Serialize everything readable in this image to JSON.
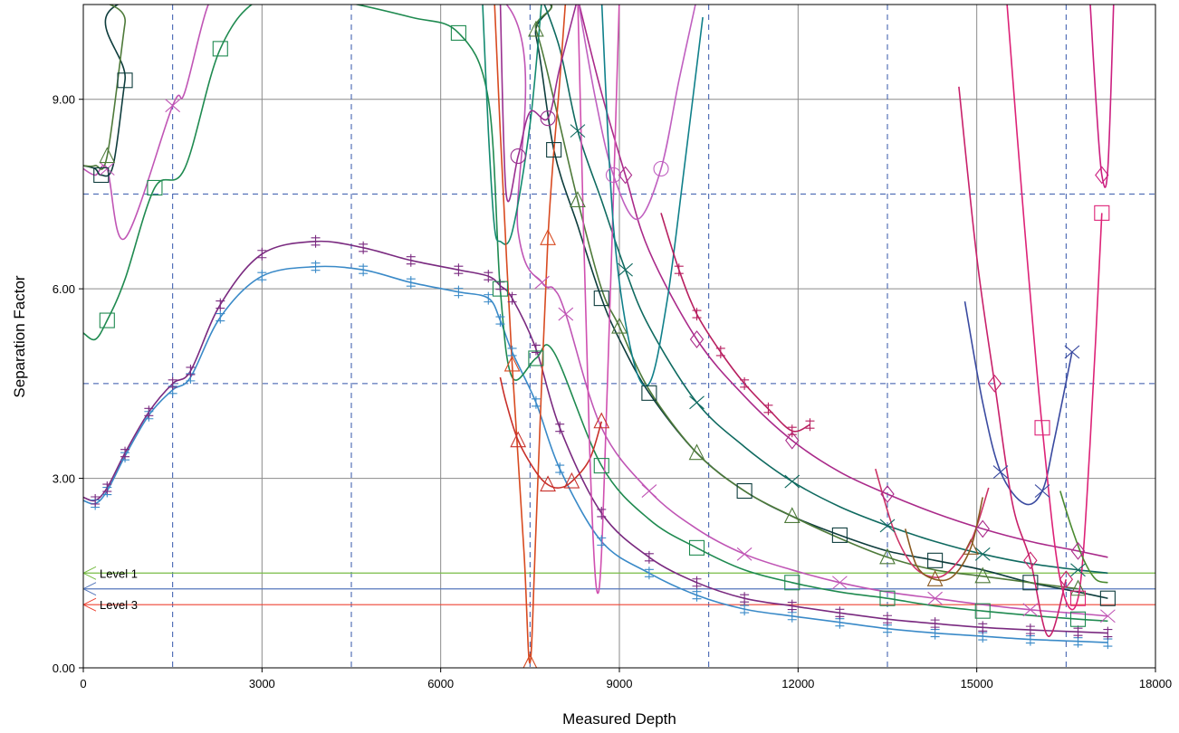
{
  "chart_data": {
    "type": "line",
    "title": "",
    "xlabel": "Measured Depth",
    "ylabel": "Separation  Factor",
    "xlim": [
      0,
      18000
    ],
    "ylim": [
      0,
      10.5
    ],
    "x_ticks": [
      {
        "value": 0,
        "label": "0"
      },
      {
        "value": 3000,
        "label": "3000"
      },
      {
        "value": 6000,
        "label": "6000"
      },
      {
        "value": 9000,
        "label": "9000"
      },
      {
        "value": 12000,
        "label": "12000"
      },
      {
        "value": 15000,
        "label": "15000"
      },
      {
        "value": 18000,
        "label": "18000"
      }
    ],
    "y_ticks": [
      {
        "value": 0,
        "label": "0.00"
      },
      {
        "value": 3,
        "label": "3.00"
      },
      {
        "value": 6,
        "label": "6.00"
      },
      {
        "value": 9,
        "label": "9.00"
      }
    ],
    "grid": true,
    "minor_dashed_x": [
      1500,
      4500,
      7500,
      10500,
      13500,
      16500
    ],
    "minor_dashed_y": [
      4.5,
      7.5
    ],
    "grid_color": "#8a8a8a",
    "dashed_grid_color": "#3355aa",
    "levels": [
      {
        "name": "Level 1",
        "value": 1.5,
        "color": "#77bb44"
      },
      {
        "name": "",
        "value": 1.25,
        "color": "#5577bb"
      },
      {
        "name": "Level 3",
        "value": 1.0,
        "color": "#ee4433"
      }
    ],
    "series": [
      {
        "color": "#3a8ac8",
        "marker": "plus",
        "x": [
          0,
          200,
          400,
          700,
          1100,
          1500,
          1800,
          2300,
          3000,
          3900,
          4700,
          5500,
          6300,
          6800,
          7000,
          7200,
          7600,
          8000,
          8700,
          9500,
          10300,
          11100,
          11900,
          12700,
          13500,
          14300,
          15100,
          15900,
          16700,
          17200
        ],
        "y": [
          2.65,
          2.6,
          2.8,
          3.35,
          4.0,
          4.4,
          4.6,
          5.55,
          6.2,
          6.35,
          6.3,
          6.1,
          5.95,
          5.85,
          5.5,
          5.0,
          4.2,
          3.15,
          2.0,
          1.5,
          1.15,
          0.93,
          0.82,
          0.72,
          0.62,
          0.55,
          0.5,
          0.45,
          0.42,
          0.4
        ]
      },
      {
        "color": "#7a2a80",
        "marker": "plus",
        "x": [
          0,
          200,
          400,
          700,
          1100,
          1500,
          1800,
          2300,
          3000,
          3900,
          4700,
          5500,
          6300,
          6800,
          7000,
          7200,
          7600,
          8000,
          8700,
          9500,
          10300,
          11100,
          11900,
          12700,
          13500,
          14300,
          15100,
          15900,
          16700,
          17200
        ],
        "y": [
          2.7,
          2.65,
          2.85,
          3.4,
          4.05,
          4.5,
          4.7,
          5.75,
          6.55,
          6.75,
          6.65,
          6.45,
          6.3,
          6.2,
          6.05,
          5.85,
          5.05,
          3.8,
          2.45,
          1.75,
          1.35,
          1.1,
          0.98,
          0.87,
          0.77,
          0.7,
          0.64,
          0.6,
          0.57,
          0.55
        ]
      },
      {
        "color": "#1f8a50",
        "marker": "square",
        "x": [
          0,
          200,
          400,
          700,
          1200,
          1700,
          2300,
          3000,
          4000,
          5500,
          6300,
          6800,
          7000,
          7200,
          7600,
          7900,
          8700,
          9500,
          10300,
          11100,
          11900,
          12700,
          13500,
          14300,
          15100,
          15900,
          16700,
          17200
        ],
        "y": [
          5.3,
          5.2,
          5.5,
          6.15,
          7.6,
          7.9,
          9.8,
          10.6,
          10.6,
          10.3,
          10.05,
          9.0,
          6.0,
          4.6,
          4.9,
          5.0,
          3.2,
          2.35,
          1.9,
          1.55,
          1.35,
          1.2,
          1.1,
          0.98,
          0.9,
          0.83,
          0.77,
          0.74
        ]
      },
      {
        "color": "#c055b5",
        "marker": "x",
        "x": [
          0,
          200,
          400,
          700,
          1500,
          1700,
          2100,
          2400,
          7000,
          7300,
          7700,
          7900,
          8100,
          8700,
          9500,
          10300,
          11100,
          11900,
          12700,
          13500,
          14300,
          15100,
          15900,
          16700,
          17200
        ],
        "y": [
          7.9,
          7.8,
          7.9,
          6.8,
          8.9,
          9.1,
          10.5,
          10.6,
          10.6,
          6.9,
          6.1,
          6.0,
          5.6,
          3.8,
          2.8,
          2.2,
          1.8,
          1.55,
          1.35,
          1.2,
          1.1,
          1.0,
          0.92,
          0.86,
          0.82
        ]
      },
      {
        "color": "#0e3d3d",
        "marker": "square",
        "x": [
          0,
          200,
          300,
          500,
          700,
          900,
          7300,
          7600,
          7900,
          8300,
          8700,
          9000,
          9500,
          10300,
          11100,
          11900,
          12700,
          13500,
          14300,
          15100,
          15900,
          16700,
          17200
        ],
        "y": [
          7.95,
          7.9,
          7.8,
          7.95,
          9.3,
          10.6,
          10.6,
          10.0,
          8.2,
          7.0,
          5.85,
          5.2,
          4.35,
          3.4,
          2.8,
          2.4,
          2.1,
          1.85,
          1.7,
          1.55,
          1.35,
          1.2,
          1.1
        ]
      },
      {
        "color": "#4e7a3a",
        "marker": "triangle",
        "x": [
          0,
          200,
          400,
          700,
          800,
          7300,
          7600,
          7900,
          8300,
          8700,
          9000,
          9500,
          10300,
          11100,
          11900,
          12700,
          13500,
          14300,
          15100,
          15900,
          16700
        ],
        "y": [
          7.95,
          7.95,
          8.1,
          10.2,
          10.6,
          10.6,
          10.1,
          9.0,
          7.4,
          6.0,
          5.4,
          4.4,
          3.4,
          2.8,
          2.4,
          2.05,
          1.75,
          1.55,
          1.45,
          1.35,
          1.25
        ]
      },
      {
        "color": "#0f6a60",
        "marker": "x",
        "x": [
          7700,
          8000,
          8300,
          8700,
          9100,
          9500,
          10300,
          11100,
          11900,
          12700,
          13500,
          14300,
          15100,
          15900,
          16700,
          17200
        ],
        "y": [
          10.6,
          9.8,
          8.5,
          7.4,
          6.3,
          5.4,
          4.2,
          3.5,
          2.95,
          2.55,
          2.25,
          2.0,
          1.8,
          1.65,
          1.55,
          1.5
        ]
      },
      {
        "color": "#aa2a8a",
        "marker": "diamond",
        "x": [
          8300,
          8700,
          9100,
          9500,
          10300,
          11100,
          11900,
          12700,
          13500,
          14300,
          15100,
          15900,
          16700,
          17200
        ],
        "y": [
          10.6,
          9.1,
          7.8,
          6.6,
          5.2,
          4.3,
          3.6,
          3.1,
          2.75,
          2.45,
          2.2,
          2.0,
          1.85,
          1.75
        ]
      },
      {
        "color": "#138a70",
        "marker": "none",
        "x": [
          6700,
          6800,
          6900,
          7000,
          7200,
          7500,
          7700
        ],
        "y": [
          10.6,
          8.5,
          7.0,
          6.75,
          6.9,
          8.6,
          10.6
        ]
      },
      {
        "color": "#d84a20",
        "marker": "triangle",
        "x": [
          6900,
          7000,
          7200,
          7400,
          7500,
          7600,
          7800,
          8000,
          8100
        ],
        "y": [
          10.6,
          8.5,
          4.8,
          1.8,
          0.08,
          2.2,
          6.8,
          9.3,
          10.6
        ]
      },
      {
        "color": "#c8302a",
        "marker": "triangle",
        "x": [
          7000,
          7100,
          7300,
          7600,
          7800,
          8000,
          8200,
          8500,
          8700
        ],
        "y": [
          4.6,
          4.2,
          3.6,
          3.1,
          2.9,
          2.85,
          2.95,
          3.3,
          3.9
        ]
      },
      {
        "color": "#9a3090",
        "marker": "circle",
        "x": [
          7000,
          7100,
          7300,
          7500,
          7800,
          8000,
          8300
        ],
        "y": [
          10.6,
          7.5,
          8.1,
          8.8,
          8.7,
          9.5,
          10.6
        ]
      },
      {
        "color": "#d050b0",
        "marker": "none",
        "x": [
          8300,
          8500,
          8650,
          8800,
          9000
        ],
        "y": [
          10.6,
          3.5,
          1.2,
          4.5,
          10.6
        ]
      },
      {
        "color": "#c060c0",
        "marker": "circle",
        "x": [
          8300,
          8600,
          8900,
          9300,
          9700,
          10000,
          10300
        ],
        "y": [
          10.6,
          9.0,
          7.8,
          7.1,
          7.9,
          9.3,
          10.6
        ]
      },
      {
        "color": "#10808a",
        "marker": "none",
        "x": [
          8700,
          8900,
          9200,
          9500,
          9800,
          10100,
          10400
        ],
        "y": [
          10.6,
          7.0,
          5.0,
          4.5,
          5.8,
          8.0,
          10.3
        ]
      },
      {
        "color": "#b82060",
        "marker": "plus",
        "x": [
          9700,
          10000,
          10300,
          10700,
          11100,
          11500,
          11900,
          12200
        ],
        "y": [
          7.2,
          6.3,
          5.6,
          5.0,
          4.5,
          4.1,
          3.75,
          3.85
        ]
      },
      {
        "color": "#cc3366",
        "marker": "none",
        "x": [
          13300,
          13600,
          13900,
          14200,
          14500,
          14900,
          15200
        ],
        "y": [
          3.15,
          2.2,
          1.65,
          1.45,
          1.5,
          2.0,
          2.85
        ]
      },
      {
        "color": "#8a5a20",
        "marker": "triangle",
        "x": [
          13800,
          14000,
          14300,
          14600,
          14900,
          15100
        ],
        "y": [
          2.2,
          1.6,
          1.4,
          1.45,
          1.9,
          2.7
        ]
      },
      {
        "color": "#3a4aa0",
        "marker": "x",
        "x": [
          14800,
          15100,
          15400,
          15800,
          16100,
          16300,
          16600
        ],
        "y": [
          5.8,
          4.2,
          3.1,
          2.6,
          2.8,
          3.6,
          5.0
        ]
      },
      {
        "color": "#c8206a",
        "marker": "diamond",
        "x": [
          14700,
          15000,
          15300,
          15600,
          15900,
          16200,
          16500
        ],
        "y": [
          9.2,
          6.5,
          4.5,
          2.6,
          1.7,
          0.5,
          1.4
        ]
      },
      {
        "color": "#dd2277",
        "marker": "square",
        "x": [
          15500,
          15800,
          16100,
          16400,
          16700,
          16900,
          17100
        ],
        "y": [
          10.6,
          7.0,
          3.8,
          1.4,
          1.1,
          3.5,
          7.2
        ]
      },
      {
        "color": "#cc1f80",
        "marker": "diamond",
        "x": [
          16900,
          17000,
          17100,
          17200,
          17300
        ],
        "y": [
          10.6,
          9.0,
          7.8,
          7.9,
          10.6
        ]
      },
      {
        "color": "#4a8a30",
        "marker": "none",
        "x": [
          16400,
          16600,
          16800,
          17000,
          17200
        ],
        "y": [
          2.8,
          2.2,
          1.7,
          1.4,
          1.35
        ]
      }
    ]
  }
}
